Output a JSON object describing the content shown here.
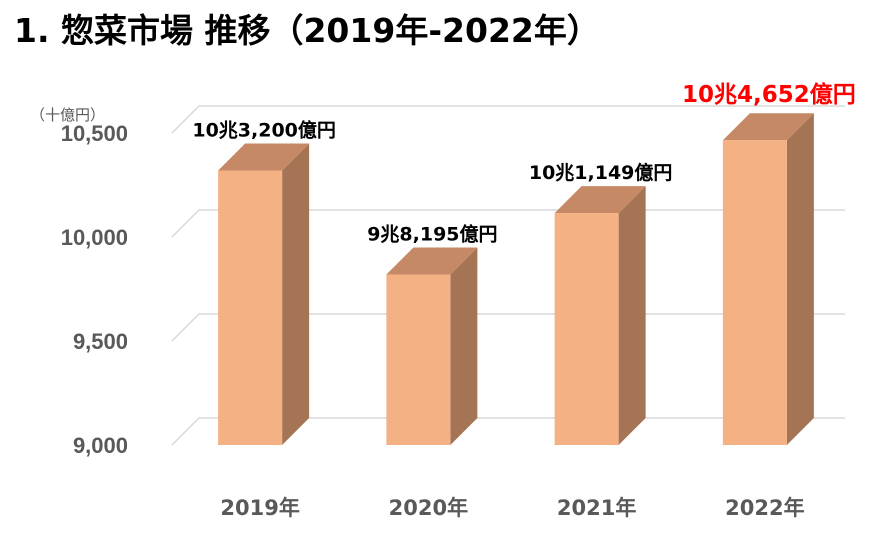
{
  "title": "1. 惣菜市場 推移（2019年-2022年）",
  "chart_data": {
    "type": "bar",
    "title": "1. 惣菜市場 推移（2019年-2022年）",
    "unit_label": "（十億円）",
    "categories": [
      "2019年",
      "2020年",
      "2021年",
      "2022年"
    ],
    "values": [
      10320.0,
      9819.5,
      10114.9,
      10465.2
    ],
    "data_labels": [
      "10兆3,200億円",
      "9兆8,195億円",
      "10兆1,149億円",
      "10兆4,652億円"
    ],
    "highlight_index": 3,
    "ylim": [
      9000,
      10500
    ],
    "yticks": [
      9000,
      9500,
      10000,
      10500
    ],
    "ytick_labels": [
      "9,000",
      "9,500",
      "10,000",
      "10,500"
    ],
    "grid": true,
    "colors": {
      "bar_front": "#F4B183",
      "bar_top": "#C58A65",
      "bar_side": "#A47455",
      "grid": "#D9D9D9",
      "axis_text": "#595959",
      "label_text": "#000000",
      "highlight_text": "#FF0000"
    }
  }
}
